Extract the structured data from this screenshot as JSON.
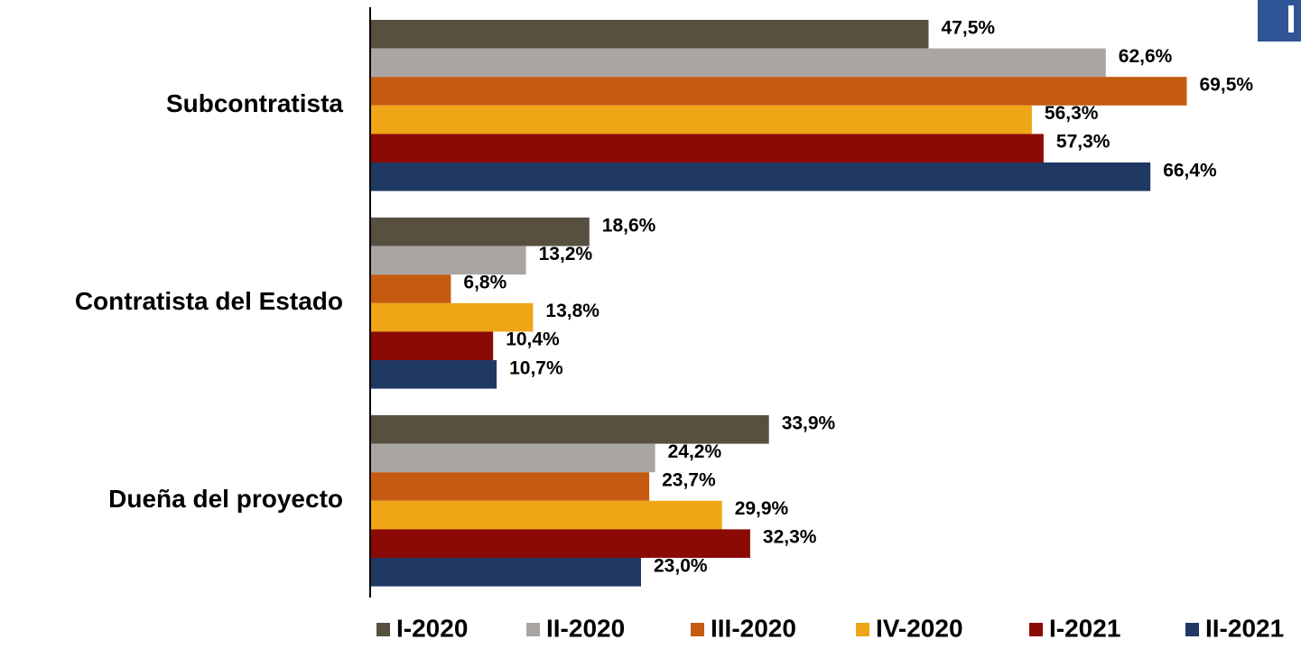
{
  "chart_data": {
    "type": "bar",
    "orientation": "horizontal",
    "categories": [
      "Subcontratista",
      "Contratista del Estado",
      "Dueña del proyecto"
    ],
    "series": [
      {
        "name": "I-2020",
        "color": "#575040",
        "values": [
          47.5,
          18.6,
          33.9
        ],
        "value_labels": [
          "47,5%",
          "18,6%",
          "33,9%"
        ]
      },
      {
        "name": "II-2020",
        "color": "#a8a5a3",
        "values": [
          62.6,
          13.2,
          24.2
        ],
        "value_labels": [
          "62,6%",
          "13,2%",
          "24,2%"
        ]
      },
      {
        "name": "III-2020",
        "color": "#c55a11",
        "values": [
          69.5,
          6.8,
          23.7
        ],
        "value_labels": [
          "69,5%",
          "6,8%",
          "23,7%"
        ]
      },
      {
        "name": "IV-2020",
        "color": "#eea616",
        "values": [
          56.3,
          13.8,
          29.9
        ],
        "value_labels": [
          "56,3%",
          "13,8%",
          "29,9%"
        ]
      },
      {
        "name": "I-2021",
        "color": "#8b0a06",
        "values": [
          57.3,
          10.4,
          32.3
        ],
        "value_labels": [
          "57,3%",
          "10,4%",
          "32,3%"
        ]
      },
      {
        "name": "II-2021",
        "color": "#203864",
        "values": [
          66.4,
          10.7,
          23.0
        ],
        "value_labels": [
          "66,4%",
          "10,7%",
          "23,0%"
        ]
      }
    ],
    "legend": "bottom"
  }
}
